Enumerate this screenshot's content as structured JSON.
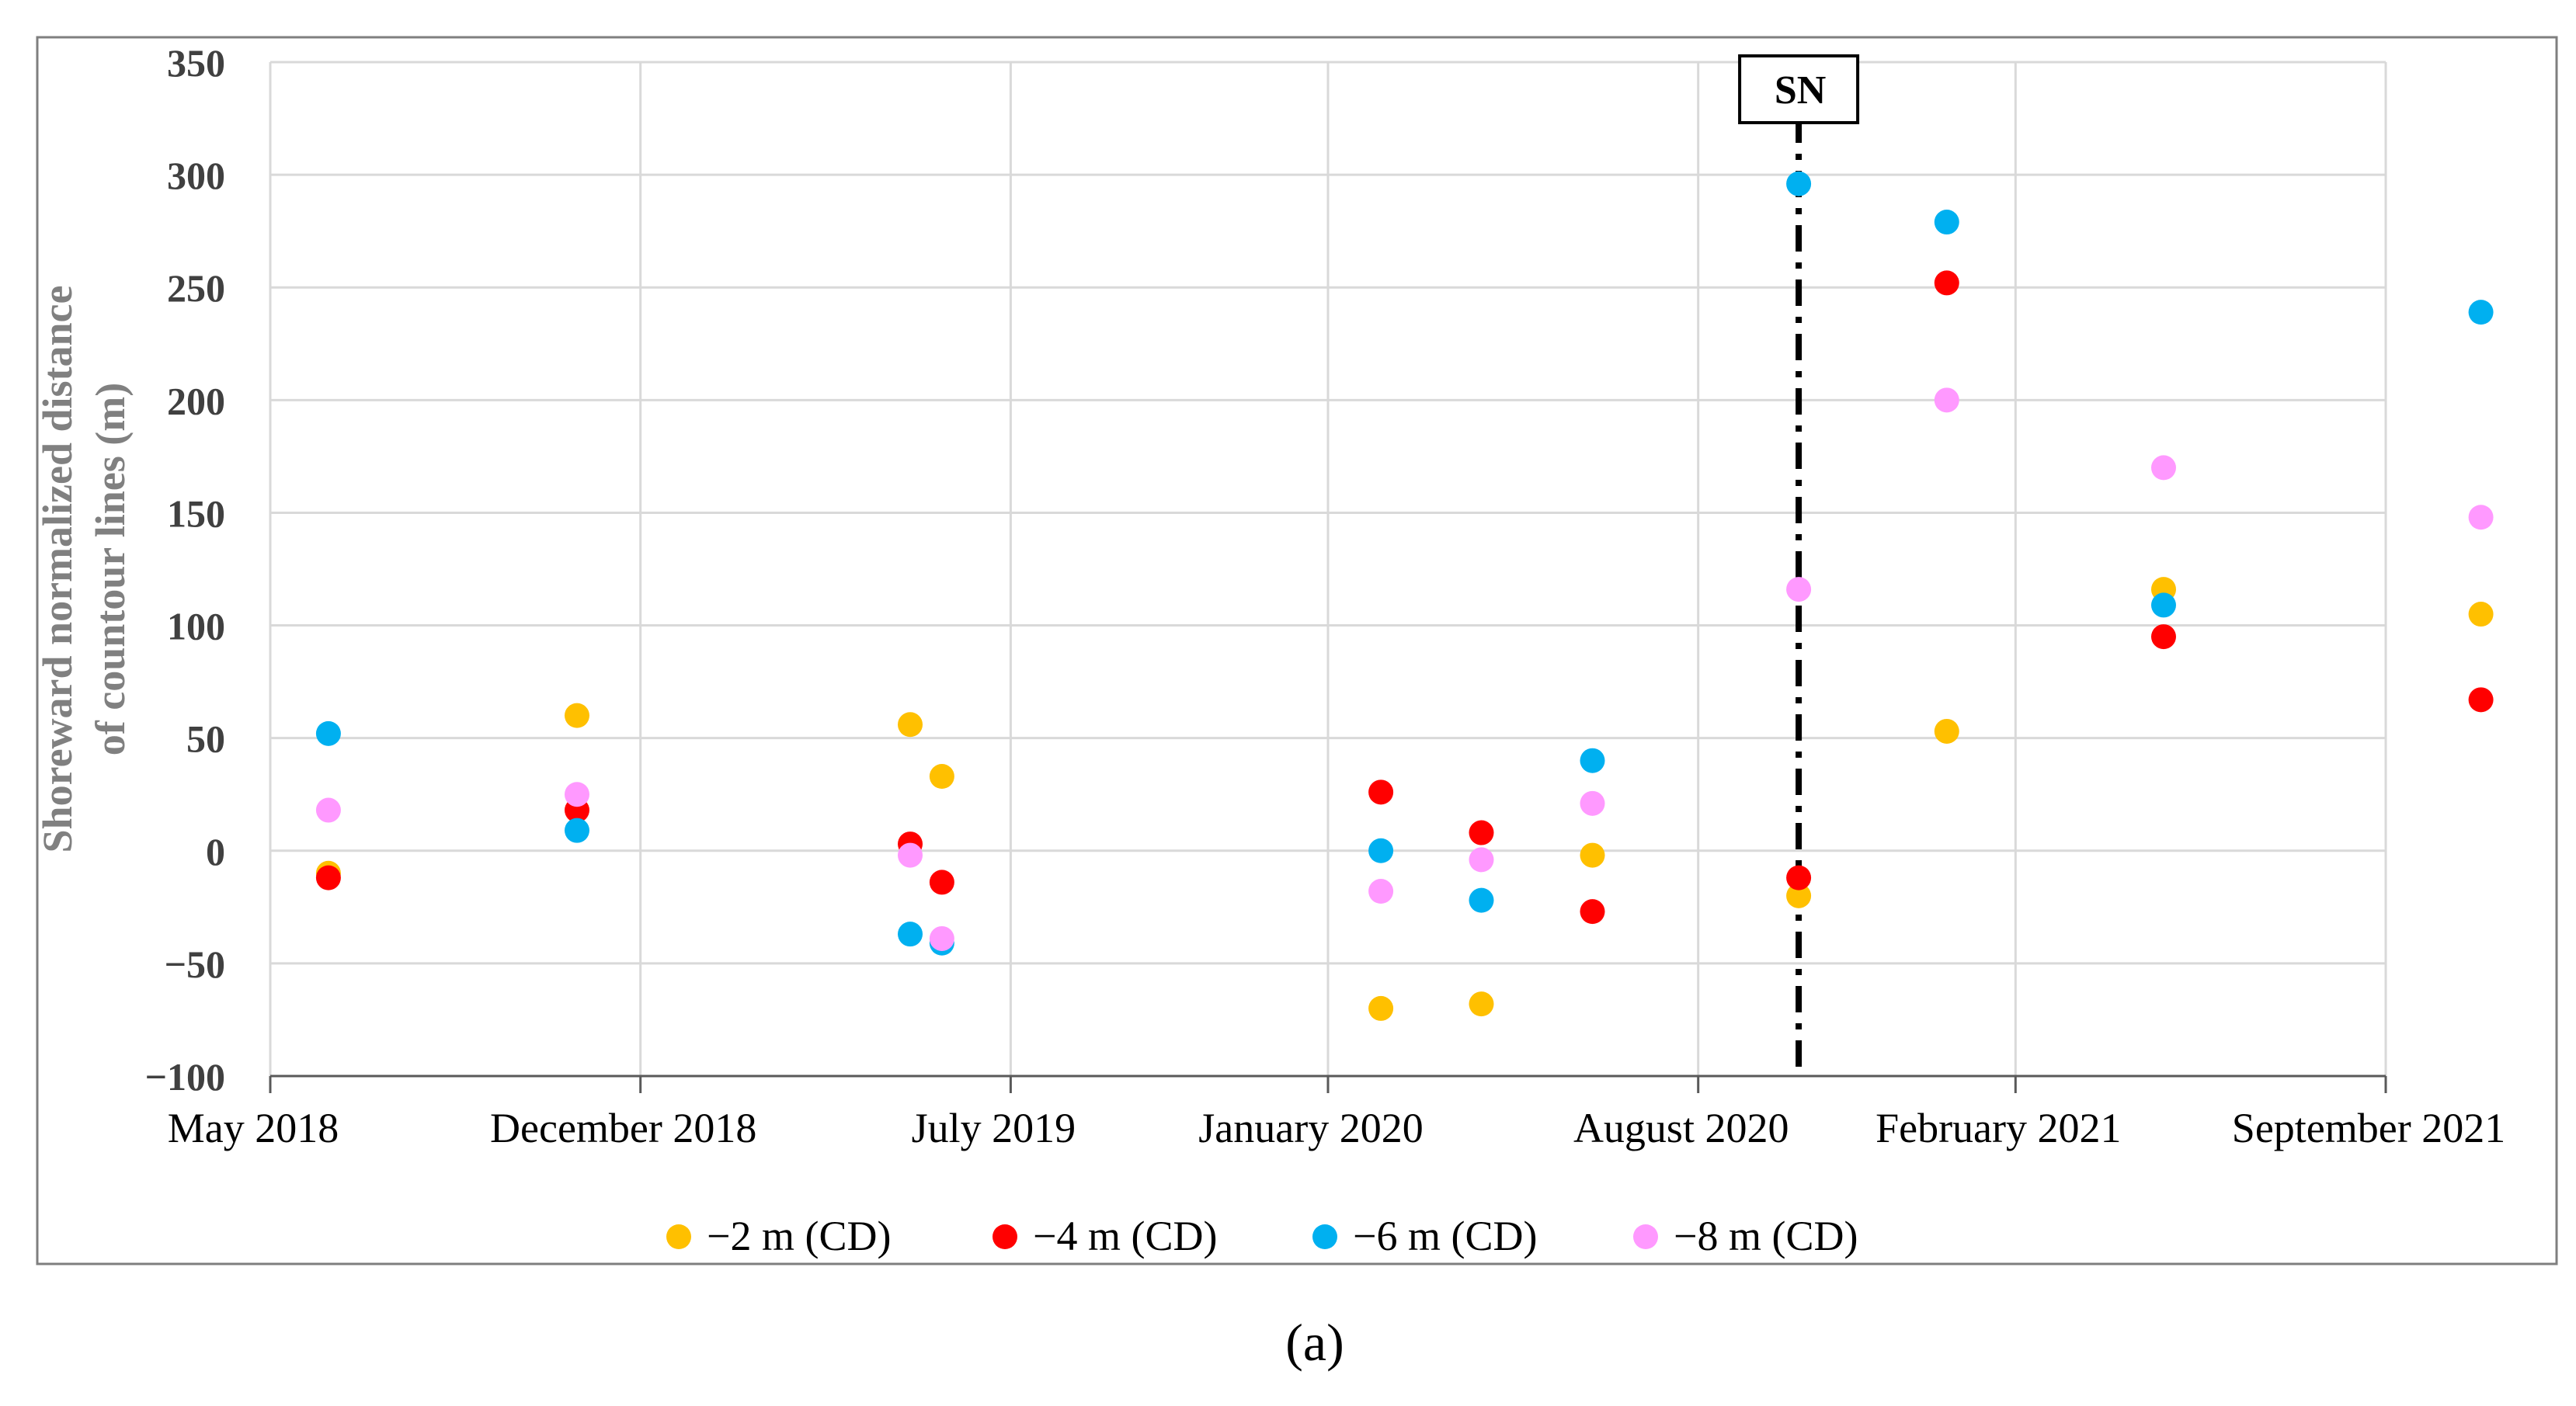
{
  "chart_data": {
    "type": "scatter",
    "title": "",
    "xlabel": "",
    "ylabel_lines": [
      "Shoreward normalized distance",
      "of countour lines (m)"
    ],
    "ylim": [
      -100,
      350
    ],
    "ytick_values": [
      -100,
      -50,
      0,
      50,
      100,
      150,
      200,
      250,
      300,
      350
    ],
    "ytick_labels": [
      "−100",
      "−50",
      "0",
      "50",
      "100",
      "150",
      "200",
      "250",
      "300",
      "350"
    ],
    "x_unit": "months since May 2018",
    "xlim": [
      0,
      40
    ],
    "xtick_values": [
      0,
      7,
      14,
      20,
      27,
      33,
      40
    ],
    "xtick_labels": [
      "May 2018",
      "December 2018",
      "July 2019",
      "January 2020",
      "August 2020",
      "February 2021",
      "September 2021"
    ],
    "grid": true,
    "legend_position": "bottom",
    "series": [
      {
        "name": "−2 m (CD)",
        "color": "#FFC000",
        "x": [
          1.1,
          5.8,
          12.1,
          12.7,
          21.0,
          22.9,
          25.0,
          28.9,
          31.7,
          35.8,
          41.8
        ],
        "y": [
          -10,
          60,
          56,
          33,
          -70,
          -68,
          -2,
          -20,
          53,
          116,
          105
        ]
      },
      {
        "name": "−4 m (CD)",
        "color": "#FF0000",
        "x": [
          1.1,
          5.8,
          12.1,
          12.7,
          21.0,
          22.9,
          25.0,
          28.9,
          31.7,
          35.8,
          41.8
        ],
        "y": [
          -12,
          18,
          3,
          -14,
          26,
          8,
          -27,
          -12,
          252,
          95,
          67
        ]
      },
      {
        "name": "−6 m (CD)",
        "color": "#00B0F0",
        "x": [
          1.1,
          5.8,
          12.1,
          12.7,
          21.0,
          22.9,
          25.0,
          28.9,
          31.7,
          35.8,
          41.8
        ],
        "y": [
          52,
          9,
          -37,
          -41,
          0,
          -22,
          40,
          296,
          279,
          109,
          239
        ]
      },
      {
        "name": "−8 m (CD)",
        "color": "#FF99FF",
        "x": [
          1.1,
          5.8,
          12.1,
          12.7,
          21.0,
          22.9,
          25.0,
          28.9,
          31.7,
          35.8,
          41.8
        ],
        "y": [
          18,
          25,
          -2,
          -39,
          -18,
          -4,
          21,
          116,
          200,
          170,
          148
        ]
      }
    ],
    "annotations": [
      {
        "text": "SN",
        "x": 28.9,
        "style": "dash-dot vertical line"
      }
    ]
  },
  "caption": "(a)"
}
